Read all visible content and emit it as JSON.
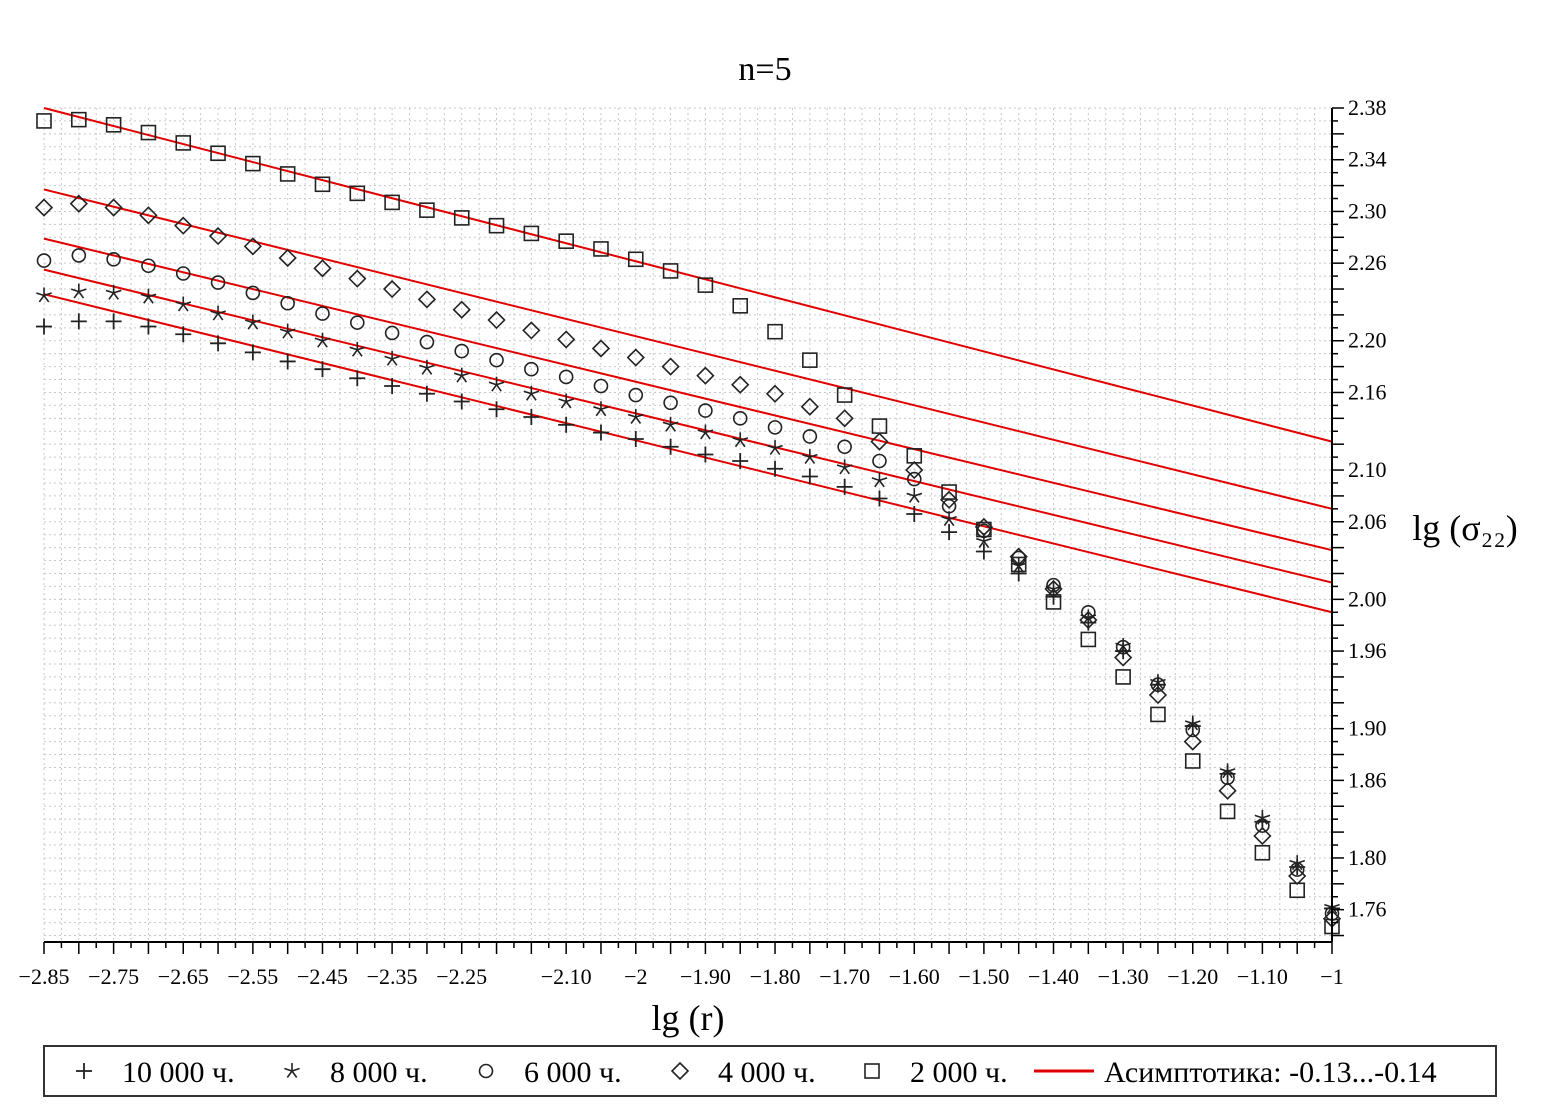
{
  "chart_data": {
    "type": "scatter",
    "title": "n=5",
    "xlabel": "lg (r)",
    "ylabel": "lg (σ₂₂)",
    "xlim": [
      -2.85,
      -1.0
    ],
    "ylim": [
      1.735,
      2.38
    ],
    "grid": true,
    "legend_position": "bottom",
    "x_ticks": [
      -2.85,
      -2.8,
      -2.75,
      -2.7,
      -2.65,
      -2.6,
      -2.55,
      -2.5,
      -2.45,
      -2.4,
      -2.35,
      -2.3,
      -2.25,
      -2.2,
      -2.15,
      -2.1,
      -2.05,
      -2.0,
      -1.95,
      -1.9,
      -1.85,
      -1.8,
      -1.75,
      -1.7,
      -1.65,
      -1.6,
      -1.55,
      -1.5,
      -1.45,
      -1.4,
      -1.35,
      -1.3,
      -1.25,
      -1.2,
      -1.15,
      -1.1,
      -1.05,
      -1.0
    ],
    "x_tick_labels": [
      {
        "x": -2.85,
        "text": "−2.85"
      },
      {
        "x": -2.75,
        "text": "−2.75"
      },
      {
        "x": -2.65,
        "text": "−2.65"
      },
      {
        "x": -2.55,
        "text": "−2.55"
      },
      {
        "x": -2.45,
        "text": "−2.45"
      },
      {
        "x": -2.35,
        "text": "−2.35"
      },
      {
        "x": -2.25,
        "text": "−2.25"
      },
      {
        "x": -2.1,
        "text": "−2.10"
      },
      {
        "x": -2.0,
        "text": "−2"
      },
      {
        "x": -1.9,
        "text": "−1.90"
      },
      {
        "x": -1.8,
        "text": "−1.80"
      },
      {
        "x": -1.7,
        "text": "−1.70"
      },
      {
        "x": -1.6,
        "text": "−1.60"
      },
      {
        "x": -1.5,
        "text": "−1.50"
      },
      {
        "x": -1.4,
        "text": "−1.40"
      },
      {
        "x": -1.3,
        "text": "−1.30"
      },
      {
        "x": -1.2,
        "text": "−1.20"
      },
      {
        "x": -1.1,
        "text": "−1.10"
      },
      {
        "x": -1.0,
        "text": "−1"
      }
    ],
    "y_tick_labels": [
      {
        "y": 2.38,
        "text": "2.38"
      },
      {
        "y": 2.34,
        "text": "2.34"
      },
      {
        "y": 2.3,
        "text": "2.30"
      },
      {
        "y": 2.26,
        "text": "2.26"
      },
      {
        "y": 2.2,
        "text": "2.20"
      },
      {
        "y": 2.16,
        "text": "2.16"
      },
      {
        "y": 2.1,
        "text": "2.10"
      },
      {
        "y": 2.06,
        "text": "2.06"
      },
      {
        "y": 2.0,
        "text": "2.00"
      },
      {
        "y": 1.96,
        "text": "1.96"
      },
      {
        "y": 1.9,
        "text": "1.90"
      },
      {
        "y": 1.86,
        "text": "1.86"
      },
      {
        "y": 1.8,
        "text": "1.80"
      },
      {
        "y": 1.76,
        "text": "1.76"
      }
    ],
    "x": [
      -2.85,
      -2.8,
      -2.75,
      -2.7,
      -2.65,
      -2.6,
      -2.55,
      -2.5,
      -2.45,
      -2.4,
      -2.35,
      -2.3,
      -2.25,
      -2.2,
      -2.15,
      -2.1,
      -2.05,
      -2.0,
      -1.95,
      -1.9,
      -1.85,
      -1.8,
      -1.75,
      -1.7,
      -1.65,
      -1.6,
      -1.55,
      -1.5,
      -1.45,
      -1.4,
      -1.35,
      -1.3,
      -1.25,
      -1.2,
      -1.15,
      -1.1,
      -1.05,
      -1.0
    ],
    "series": [
      {
        "name": "10 000 ч.",
        "marker": "plus",
        "x": [
          -2.85,
          -2.8,
          -2.75,
          -2.7,
          -2.65,
          -2.6,
          -2.55,
          -2.5,
          -2.45,
          -2.4,
          -2.35,
          -2.3,
          -2.25,
          -2.2,
          -2.15,
          -2.1,
          -2.05,
          -2.0,
          -1.95,
          -1.9,
          -1.85,
          -1.8,
          -1.75,
          -1.7,
          -1.65,
          -1.6,
          -1.55,
          -1.5,
          -1.45,
          -1.4,
          -1.35,
          -1.3,
          -1.25,
          -1.2,
          -1.15,
          -1.1,
          -1.05,
          -1.0
        ],
        "y": [
          2.211,
          2.215,
          2.215,
          2.211,
          2.205,
          2.198,
          2.191,
          2.184,
          2.178,
          2.171,
          2.165,
          2.159,
          2.153,
          2.147,
          2.141,
          2.135,
          2.129,
          2.124,
          2.118,
          2.112,
          2.107,
          2.101,
          2.095,
          2.087,
          2.078,
          2.066,
          2.052,
          2.037,
          2.02,
          2.002,
          1.982,
          1.96,
          1.934,
          1.902,
          1.865,
          1.828,
          1.793,
          1.761
        ]
      },
      {
        "name": "8 000 ч.",
        "marker": "star",
        "x": [
          -2.85,
          -2.8,
          -2.75,
          -2.7,
          -2.65,
          -2.6,
          -2.55,
          -2.5,
          -2.45,
          -2.4,
          -2.35,
          -2.3,
          -2.25,
          -2.2,
          -2.15,
          -2.1,
          -2.05,
          -2.0,
          -1.95,
          -1.9,
          -1.85,
          -1.8,
          -1.75,
          -1.7,
          -1.65,
          -1.6,
          -1.55,
          -1.5,
          -1.45,
          -1.4,
          -1.35,
          -1.3,
          -1.25,
          -1.2,
          -1.15,
          -1.1,
          -1.05,
          -1.0
        ],
        "y": [
          2.235,
          2.238,
          2.237,
          2.234,
          2.228,
          2.221,
          2.214,
          2.207,
          2.2,
          2.193,
          2.186,
          2.179,
          2.173,
          2.166,
          2.159,
          2.153,
          2.147,
          2.141,
          2.135,
          2.129,
          2.123,
          2.117,
          2.11,
          2.102,
          2.092,
          2.08,
          2.062,
          2.045,
          2.026,
          2.008,
          1.986,
          1.964,
          1.936,
          1.904,
          1.867,
          1.831,
          1.796,
          1.762
        ]
      },
      {
        "name": "6 000 ч.",
        "marker": "circle",
        "x": [
          -2.85,
          -2.8,
          -2.75,
          -2.7,
          -2.65,
          -2.6,
          -2.55,
          -2.5,
          -2.45,
          -2.4,
          -2.35,
          -2.3,
          -2.25,
          -2.2,
          -2.15,
          -2.1,
          -2.05,
          -2.0,
          -1.95,
          -1.9,
          -1.85,
          -1.8,
          -1.75,
          -1.7,
          -1.65,
          -1.6,
          -1.55,
          -1.5,
          -1.45,
          -1.4,
          -1.35,
          -1.3,
          -1.25,
          -1.2,
          -1.15,
          -1.1,
          -1.05,
          -1.0
        ],
        "y": [
          2.262,
          2.266,
          2.263,
          2.258,
          2.252,
          2.245,
          2.237,
          2.229,
          2.221,
          2.214,
          2.206,
          2.199,
          2.192,
          2.185,
          2.178,
          2.172,
          2.165,
          2.158,
          2.152,
          2.146,
          2.14,
          2.133,
          2.126,
          2.118,
          2.107,
          2.093,
          2.072,
          2.053,
          2.032,
          2.011,
          1.99,
          1.963,
          1.934,
          1.899,
          1.862,
          1.825,
          1.791,
          1.757
        ]
      },
      {
        "name": "4 000 ч.",
        "marker": "diamond",
        "x": [
          -2.85,
          -2.8,
          -2.75,
          -2.7,
          -2.65,
          -2.6,
          -2.55,
          -2.5,
          -2.45,
          -2.4,
          -2.35,
          -2.3,
          -2.25,
          -2.2,
          -2.15,
          -2.1,
          -2.05,
          -2.0,
          -1.95,
          -1.9,
          -1.85,
          -1.8,
          -1.75,
          -1.7,
          -1.65,
          -1.6,
          -1.55,
          -1.5,
          -1.45,
          -1.4,
          -1.35,
          -1.3,
          -1.25,
          -1.2,
          -1.15,
          -1.1,
          -1.05,
          -1.0
        ],
        "y": [
          2.303,
          2.306,
          2.303,
          2.297,
          2.289,
          2.281,
          2.273,
          2.264,
          2.256,
          2.248,
          2.24,
          2.232,
          2.224,
          2.216,
          2.208,
          2.201,
          2.194,
          2.187,
          2.18,
          2.173,
          2.166,
          2.159,
          2.149,
          2.14,
          2.122,
          2.1,
          2.077,
          2.056,
          2.033,
          2.008,
          1.984,
          1.955,
          1.926,
          1.89,
          1.852,
          1.817,
          1.786,
          1.753
        ]
      },
      {
        "name": "2 000 ч.",
        "marker": "square",
        "x": [
          -2.85,
          -2.8,
          -2.75,
          -2.7,
          -2.65,
          -2.6,
          -2.55,
          -2.5,
          -2.45,
          -2.4,
          -2.35,
          -2.3,
          -2.25,
          -2.2,
          -2.15,
          -2.1,
          -2.05,
          -2.0,
          -1.95,
          -1.9,
          -1.85,
          -1.8,
          -1.75,
          -1.7,
          -1.65,
          -1.6,
          -1.55,
          -1.5,
          -1.45,
          -1.4,
          -1.35,
          -1.3,
          -1.25,
          -1.2,
          -1.15,
          -1.1,
          -1.05,
          -1.0
        ],
        "y": [
          2.37,
          2.371,
          2.367,
          2.361,
          2.353,
          2.345,
          2.337,
          2.329,
          2.321,
          2.314,
          2.307,
          2.301,
          2.295,
          2.289,
          2.283,
          2.277,
          2.271,
          2.263,
          2.254,
          2.243,
          2.227,
          2.207,
          2.185,
          2.158,
          2.134,
          2.111,
          2.083,
          2.054,
          2.027,
          1.998,
          1.969,
          1.94,
          1.911,
          1.875,
          1.836,
          1.804,
          1.775,
          1.747
        ]
      }
    ],
    "asymptotes": {
      "name": "Асимптотика: -0.13...-0.14",
      "color": "#e00000",
      "lines": [
        {
          "x": [
            -2.85,
            -1.0
          ],
          "y": [
            2.38,
            2.122
          ]
        },
        {
          "x": [
            -2.85,
            -1.0
          ],
          "y": [
            2.317,
            2.07
          ]
        },
        {
          "x": [
            -2.85,
            -1.0
          ],
          "y": [
            2.279,
            2.038
          ]
        },
        {
          "x": [
            -2.85,
            -1.0
          ],
          "y": [
            2.255,
            2.013
          ]
        },
        {
          "x": [
            -2.85,
            -1.0
          ],
          "y": [
            2.236,
            1.99
          ]
        }
      ]
    }
  },
  "legend": {
    "items": [
      {
        "symbol": "+",
        "label": "10 000 ч."
      },
      {
        "symbol": "⋆",
        "label": "8 000 ч."
      },
      {
        "symbol": "○",
        "label": "6 000 ч."
      },
      {
        "symbol": "◇",
        "label": "4 000 ч."
      },
      {
        "symbol": "□",
        "label": "2 000 ч."
      }
    ],
    "asymptote_label": "Асимптотика: -0.13...-0.14"
  },
  "colors": {
    "asymptote": "#e00000",
    "marker": "#222222",
    "grid": "#c8c8c8",
    "axis": "#000000"
  }
}
